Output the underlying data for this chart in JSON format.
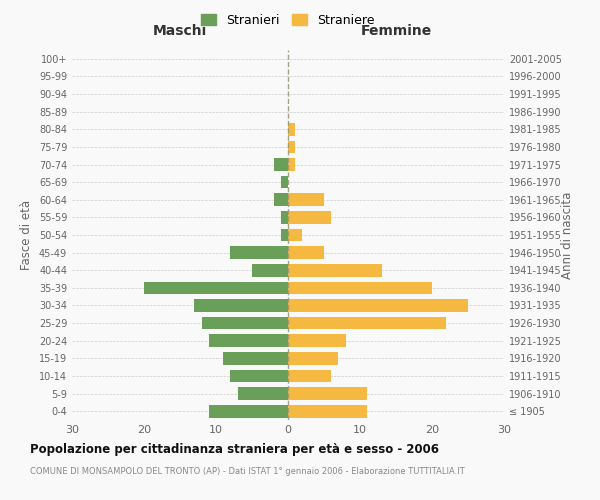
{
  "age_groups": [
    "100+",
    "95-99",
    "90-94",
    "85-89",
    "80-84",
    "75-79",
    "70-74",
    "65-69",
    "60-64",
    "55-59",
    "50-54",
    "45-49",
    "40-44",
    "35-39",
    "30-34",
    "25-29",
    "20-24",
    "15-19",
    "10-14",
    "5-9",
    "0-4"
  ],
  "birth_years": [
    "≤ 1905",
    "1906-1910",
    "1911-1915",
    "1916-1920",
    "1921-1925",
    "1926-1930",
    "1931-1935",
    "1936-1940",
    "1941-1945",
    "1946-1950",
    "1951-1955",
    "1956-1960",
    "1961-1965",
    "1966-1970",
    "1971-1975",
    "1976-1980",
    "1981-1985",
    "1986-1990",
    "1991-1995",
    "1996-2000",
    "2001-2005"
  ],
  "males": [
    0,
    0,
    0,
    0,
    0,
    0,
    2,
    1,
    2,
    1,
    1,
    8,
    5,
    20,
    13,
    12,
    11,
    9,
    8,
    7,
    11
  ],
  "females": [
    0,
    0,
    0,
    0,
    1,
    1,
    1,
    0,
    5,
    6,
    2,
    5,
    13,
    20,
    25,
    22,
    8,
    7,
    6,
    11,
    11
  ],
  "male_color": "#6a9f5a",
  "female_color": "#f5b942",
  "background_color": "#f9f9f9",
  "grid_color": "#cccccc",
  "title": "Popolazione per cittadinanza straniera per età e sesso - 2006",
  "subtitle": "COMUNE DI MONSAMPOLO DEL TRONTO (AP) - Dati ISTAT 1° gennaio 2006 - Elaborazione TUTTITALIA.IT",
  "xlabel_left": "Maschi",
  "xlabel_right": "Femmine",
  "ylabel_left": "Fasce di età",
  "ylabel_right": "Anni di nascita",
  "legend_male": "Stranieri",
  "legend_female": "Straniere",
  "xlim": 30
}
